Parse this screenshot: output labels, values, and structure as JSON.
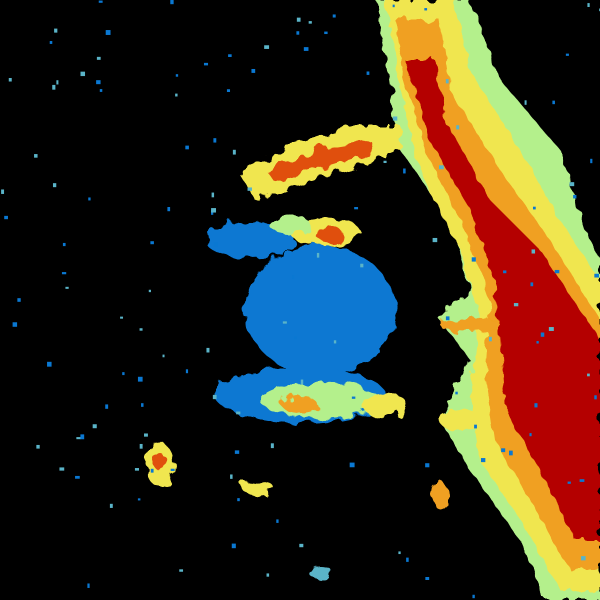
{
  "image": {
    "kind": "weather-radar-reflectivity",
    "background": "#000000",
    "palette": {
      "light": "#0a78d2",
      "light_mid": "#5ab4c8",
      "moderate": "#b4f08c",
      "moderate_high": "#f0e650",
      "high": "#f0a020",
      "heavy": "#e05010",
      "extreme": "#b40000"
    }
  }
}
